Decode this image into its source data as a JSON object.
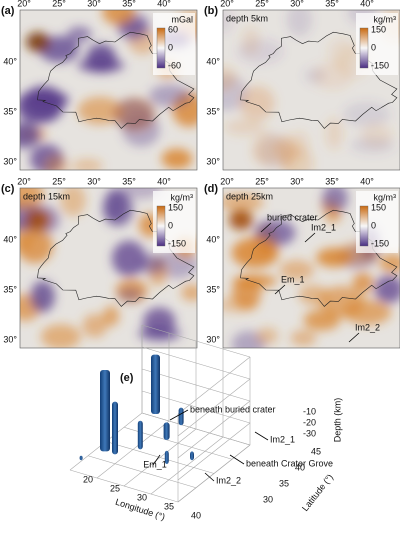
{
  "panels": [
    {
      "label": "(a)",
      "unit": "mGal",
      "colorbar_ticks": [
        60,
        0,
        -60
      ]
    },
    {
      "label": "(b)",
      "title": "depth 5km",
      "unit": "kg/m³",
      "colorbar_ticks": [
        150,
        0,
        -150
      ]
    },
    {
      "label": "(c)",
      "title": "depth 15km",
      "unit": "kg/m³",
      "colorbar_ticks": [
        150,
        0,
        -150
      ]
    },
    {
      "label": "(d)",
      "title": "depth 25km",
      "unit": "kg/m³",
      "colorbar_ticks": [
        150,
        0,
        -150
      ],
      "annotations": [
        "buried crater",
        "Im2_1",
        "Em_1",
        "Im2_2"
      ]
    }
  ],
  "lon_ticks": [
    "20°",
    "25°",
    "30°",
    "35°",
    "40°"
  ],
  "lat_ticks": [
    "40°",
    "35°",
    "30°"
  ],
  "panel_e": {
    "label": "(e)",
    "annotations": [
      "beneath buried crater",
      "Im2_1",
      "beneath Crater Grove",
      "Em_1",
      "Im2_2"
    ],
    "depth_label": "Depth (km)",
    "depth_ticks": [
      -10,
      -20,
      -30
    ],
    "latitude_label": "Latitude (°)",
    "latitude_ticks": [
      45,
      40,
      35,
      30
    ],
    "longitude_label": "Longitude (°)",
    "longitude_ticks": [
      20,
      25,
      30,
      35,
      40
    ]
  }
}
